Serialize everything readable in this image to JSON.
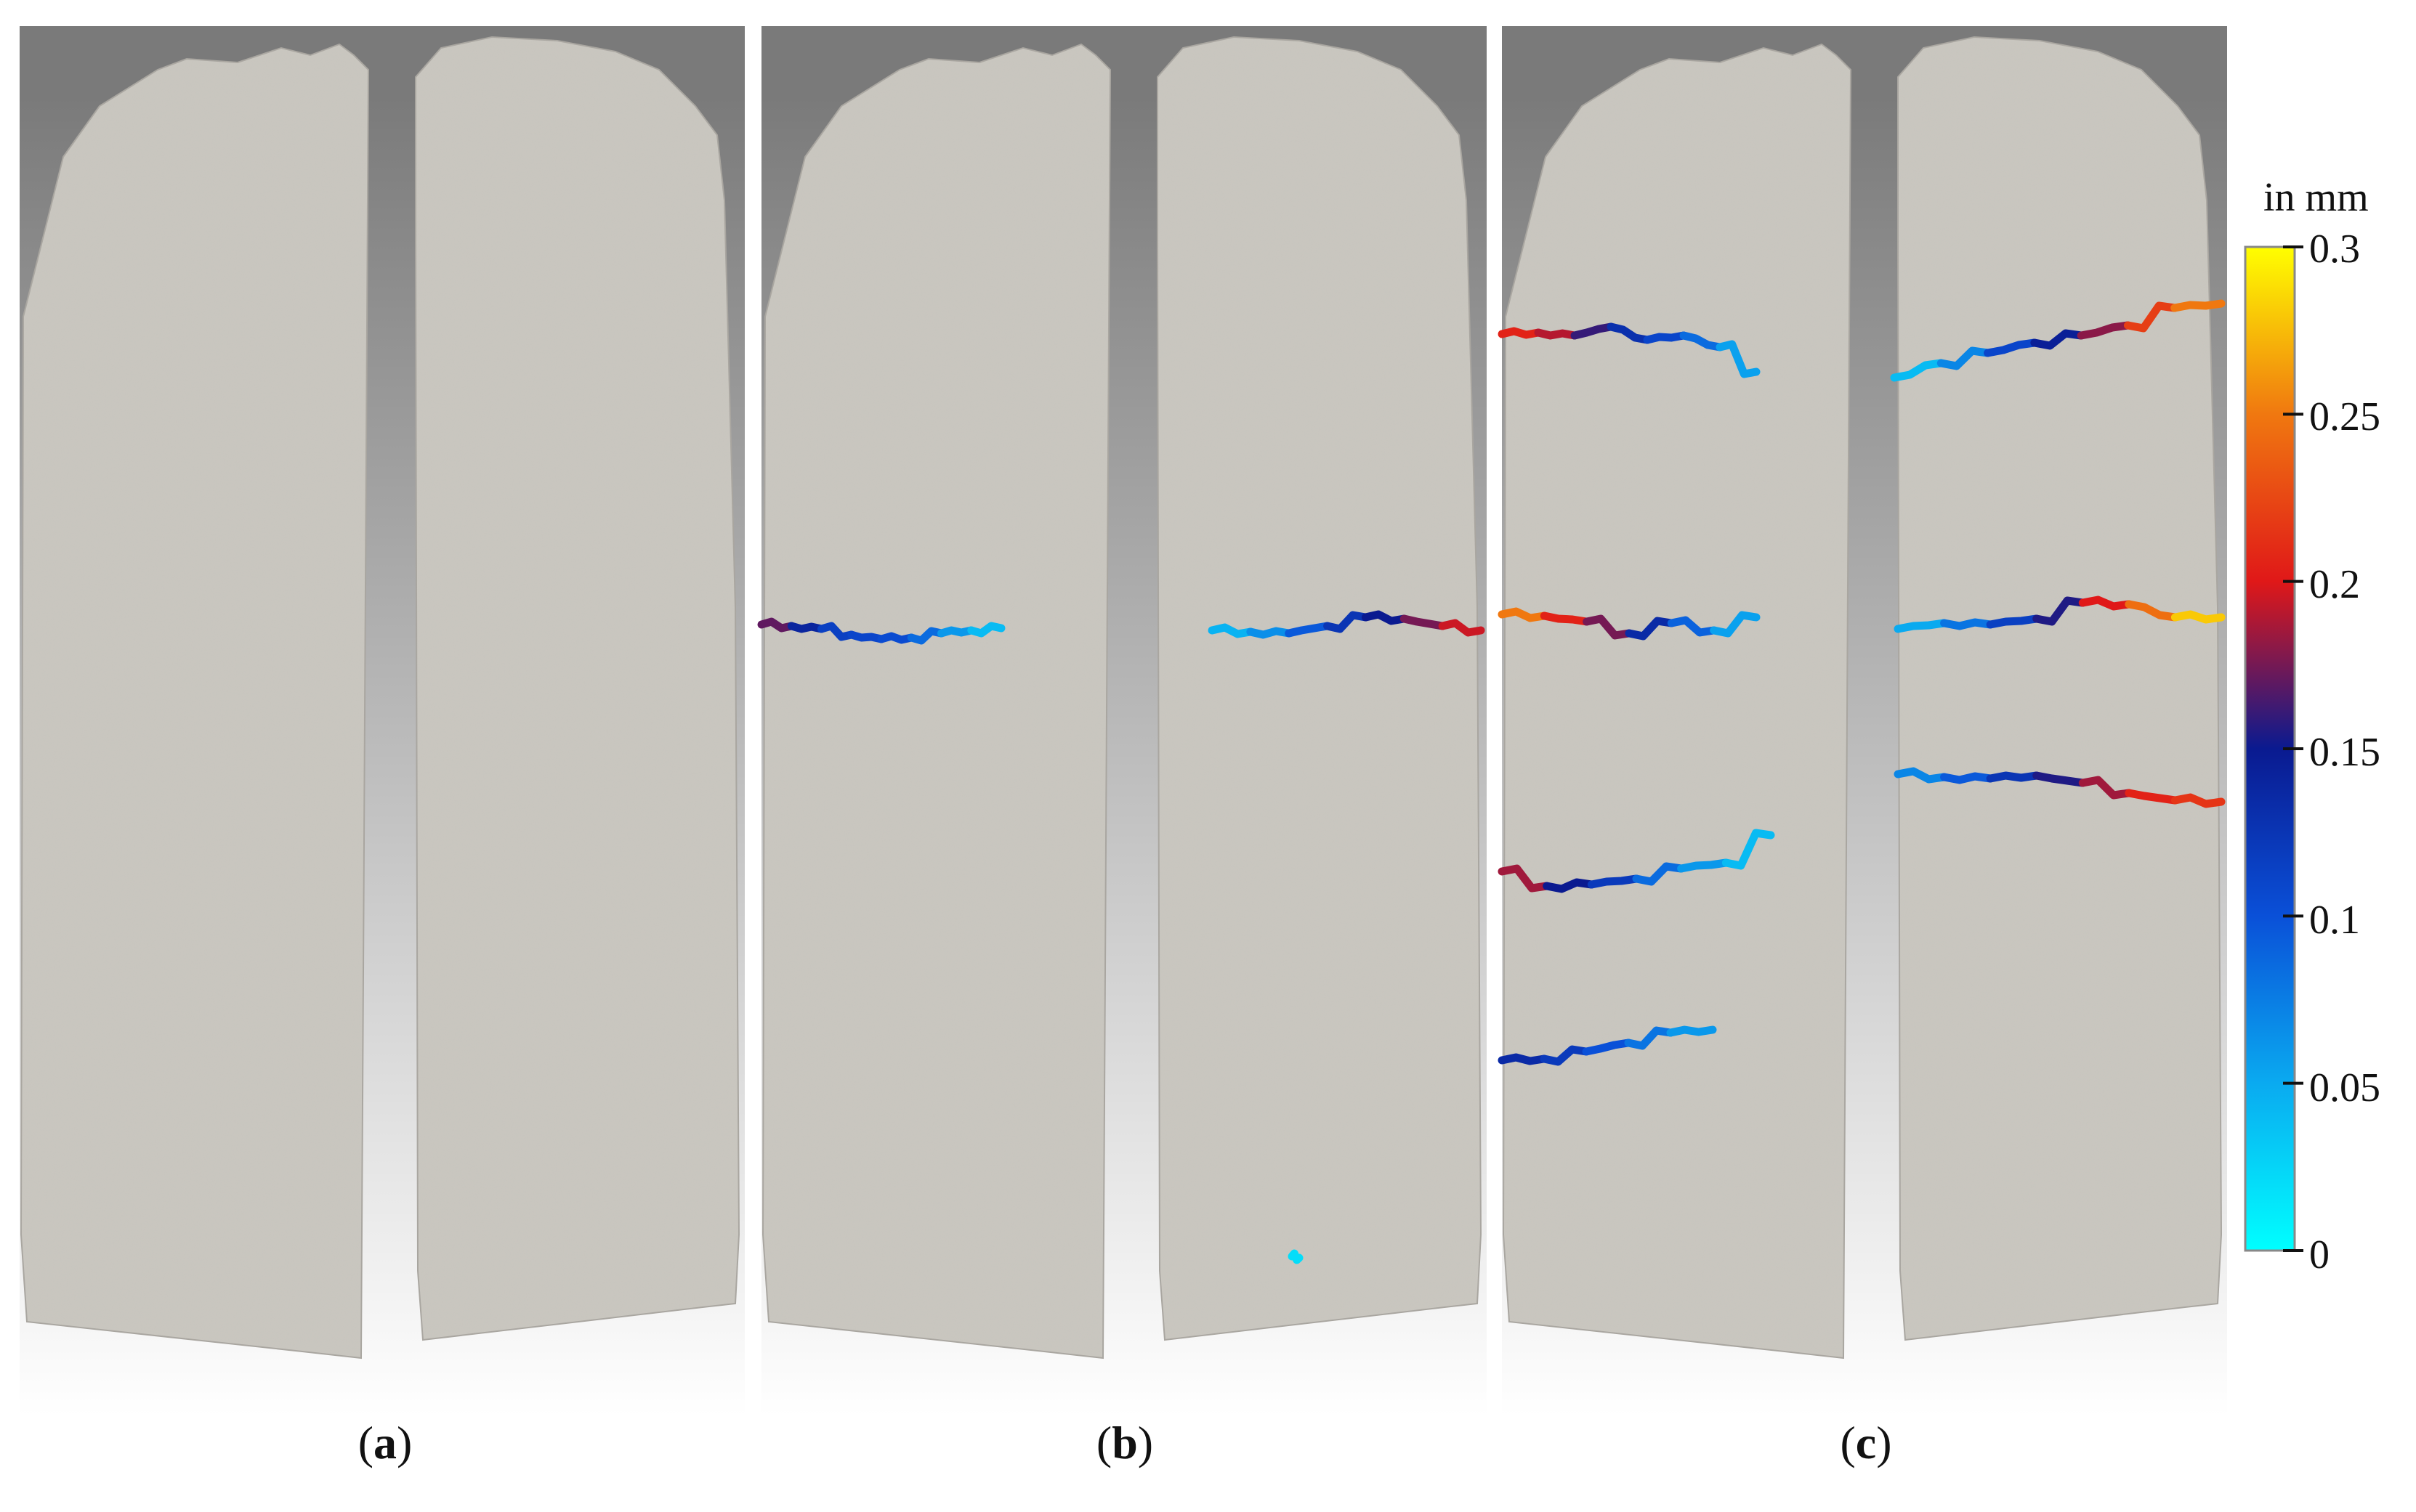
{
  "panels": [
    {
      "id": "a",
      "label": "a",
      "cracks": []
    },
    {
      "id": "b",
      "label": "b",
      "cracks": [
        {
          "side": "left",
          "values": [
            0.18,
            0.16,
            0.12,
            0.11,
            0.11,
            0.1,
            0.07,
            0.05,
            0.03
          ]
        },
        {
          "side": "right",
          "values": [
            0.04,
            0.05,
            0.08,
            0.11,
            0.14,
            0.16,
            0.19,
            0.2
          ]
        },
        {
          "side": "right",
          "values": [
            0.02,
            0.02
          ]
        }
      ]
    },
    {
      "id": "c",
      "label": "c",
      "cracks": [
        {
          "side": "left",
          "values": [
            0.21,
            0.2,
            0.18,
            0.14,
            0.12,
            0.1,
            0.07,
            0.04
          ]
        },
        {
          "side": "left",
          "values": [
            0.28,
            0.22,
            0.19,
            0.16,
            0.11,
            0.07,
            0.04
          ]
        },
        {
          "side": "left",
          "values": [
            0.21,
            0.16,
            0.14,
            0.1,
            0.07,
            0.05,
            0.03
          ]
        },
        {
          "side": "left",
          "values": [
            0.14,
            0.13,
            0.11,
            0.09,
            0.07,
            0.05
          ]
        },
        {
          "side": "right",
          "values": [
            0.03,
            0.05,
            0.09,
            0.13,
            0.16,
            0.2,
            0.24,
            0.26
          ]
        },
        {
          "side": "right",
          "values": [
            0.04,
            0.06,
            0.1,
            0.13,
            0.18,
            0.22,
            0.27,
            0.29
          ]
        },
        {
          "side": "right",
          "values": [
            0.06,
            0.08,
            0.11,
            0.14,
            0.17,
            0.2,
            0.21,
            0.22
          ]
        }
      ]
    }
  ],
  "colorbar": {
    "unit_label": "in mm",
    "min": 0,
    "max": 0.3,
    "ticks": [
      "0",
      "0.05",
      "0.1",
      "0.15",
      "0.2",
      "0.25",
      "0.3"
    ],
    "colormap": [
      "#00ffff",
      "#0aaaf0",
      "#0a50d8",
      "#0a1a90",
      "#e01818",
      "#f07810",
      "#ffff00"
    ]
  },
  "colors": {
    "specimen": "#cac7c0",
    "specimen_edge": "#a9a6a0",
    "background_top": "#7a7a7a",
    "background_bottom": "#ffffff"
  }
}
